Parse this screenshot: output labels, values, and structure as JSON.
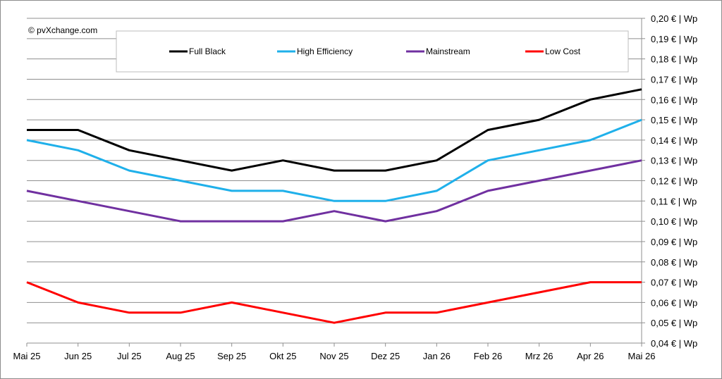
{
  "chart_data": {
    "type": "line",
    "categories": [
      "Mai 25",
      "Jun 25",
      "Jul 25",
      "Aug 25",
      "Sep 25",
      "Okt 25",
      "Nov 25",
      "Dez 25",
      "Jan 26",
      "Feb 26",
      "Mrz 26",
      "Apr 26",
      "Mai 26"
    ],
    "series": [
      {
        "name": "Full Black",
        "color": "#000000",
        "values": [
          0.145,
          0.145,
          0.135,
          0.13,
          0.125,
          0.13,
          0.125,
          0.125,
          0.13,
          0.145,
          0.15,
          0.16,
          0.165
        ]
      },
      {
        "name": "High Efficiency",
        "color": "#1fb0ea",
        "values": [
          0.14,
          0.135,
          0.125,
          0.12,
          0.115,
          0.115,
          0.11,
          0.11,
          0.115,
          0.13,
          0.135,
          0.14,
          0.15
        ]
      },
      {
        "name": "Mainstream",
        "color": "#7030a0",
        "values": [
          0.115,
          0.11,
          0.105,
          0.1,
          0.1,
          0.1,
          0.105,
          0.1,
          0.105,
          0.115,
          0.12,
          0.125,
          0.13
        ]
      },
      {
        "name": "Low Cost",
        "color": "#ff0000",
        "values": [
          0.07,
          0.06,
          0.055,
          0.055,
          0.06,
          0.055,
          0.05,
          0.055,
          0.055,
          0.06,
          0.065,
          0.07,
          0.07
        ]
      }
    ],
    "ylim": [
      0.04,
      0.2
    ],
    "yticks": [
      "0,04 € | Wp",
      "0,05 € | Wp",
      "0,06 € | Wp",
      "0,07 € | Wp",
      "0,08 € | Wp",
      "0,09 € | Wp",
      "0,10 € | Wp",
      "0,11 € | Wp",
      "0,12 € | Wp",
      "0,13 € | Wp",
      "0,14 € | Wp",
      "0,15 € | Wp",
      "0,16 € | Wp",
      "0,17 € | Wp",
      "0,18 € | Wp",
      "0,19 € | Wp",
      "0,20 € | Wp"
    ],
    "y_axis_side": "right",
    "grid": true,
    "legend_position": "top",
    "title": "",
    "xlabel": "",
    "ylabel": "",
    "source_note": "© pvXchange.com"
  }
}
